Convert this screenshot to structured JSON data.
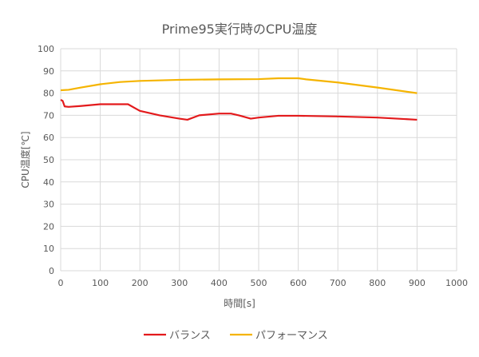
{
  "chart_data": {
    "type": "line",
    "title": "Prime95実行時のCPU温度",
    "xlabel": "時間[s]",
    "ylabel": "CPU温度[℃]",
    "xlim": [
      0,
      1000
    ],
    "ylim": [
      0,
      100
    ],
    "xticks": [
      0,
      100,
      200,
      300,
      400,
      500,
      600,
      700,
      800,
      900,
      1000
    ],
    "yticks": [
      0,
      10,
      20,
      30,
      40,
      50,
      60,
      70,
      80,
      90,
      100
    ],
    "grid": true,
    "legend": "bottom",
    "series": [
      {
        "name": "バランス",
        "color": "#e31a1c",
        "x": [
          0,
          5,
          10,
          20,
          50,
          100,
          150,
          170,
          190,
          200,
          250,
          300,
          320,
          350,
          400,
          430,
          450,
          480,
          500,
          550,
          600,
          700,
          800,
          850,
          900
        ],
        "y": [
          77,
          76.5,
          74,
          73.8,
          74.2,
          75,
          75,
          75,
          73,
          72,
          70,
          68.5,
          68,
          70,
          70.8,
          70.8,
          70,
          68.5,
          69,
          69.8,
          69.8,
          69.5,
          69,
          68.5,
          68
        ]
      },
      {
        "name": "パフォーマンス",
        "color": "#f5b400",
        "x": [
          0,
          20,
          50,
          100,
          150,
          200,
          300,
          400,
          500,
          550,
          600,
          620,
          700,
          800,
          900
        ],
        "y": [
          81.3,
          81.5,
          82.5,
          84,
          85,
          85.5,
          86,
          86.2,
          86.3,
          86.7,
          86.7,
          86.2,
          84.8,
          82.5,
          80
        ]
      }
    ]
  }
}
